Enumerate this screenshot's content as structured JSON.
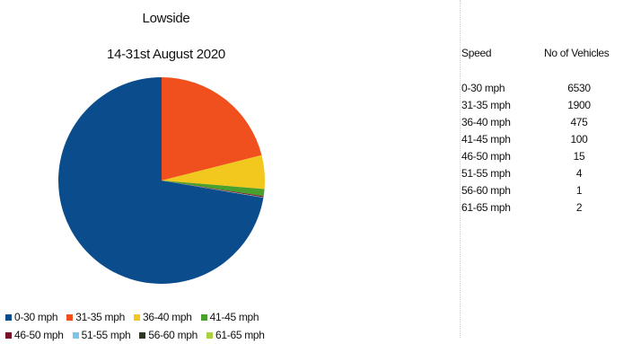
{
  "chart_data": {
    "type": "pie",
    "title": "Lowside",
    "subtitle": "14-31st August 2020",
    "categories": [
      "0-30 mph",
      "31-35 mph",
      "36-40 mph",
      "41-45 mph",
      "46-50 mph",
      "51-55 mph",
      "56-60 mph",
      "61-65 mph"
    ],
    "values": [
      6530,
      1900,
      475,
      100,
      15,
      4,
      1,
      2
    ],
    "colors": [
      "#0b4d8c",
      "#f0501e",
      "#f2c81e",
      "#4aa02c",
      "#7a1028",
      "#7cc4ea",
      "#2a3a20",
      "#a8d040"
    ],
    "legend_position": "bottom"
  },
  "table": {
    "header_speed": "Speed",
    "header_vehicles": "No of Vehicles",
    "rows": [
      {
        "speed": "0-30 mph",
        "count": "6530"
      },
      {
        "speed": "31-35 mph",
        "count": "1900"
      },
      {
        "speed": "36-40 mph",
        "count": "475"
      },
      {
        "speed": "41-45 mph",
        "count": "100"
      },
      {
        "speed": "46-50 mph",
        "count": "15"
      },
      {
        "speed": "51-55 mph",
        "count": "4"
      },
      {
        "speed": "56-60 mph",
        "count": "1"
      },
      {
        "speed": "61-65 mph",
        "count": "2"
      }
    ]
  }
}
